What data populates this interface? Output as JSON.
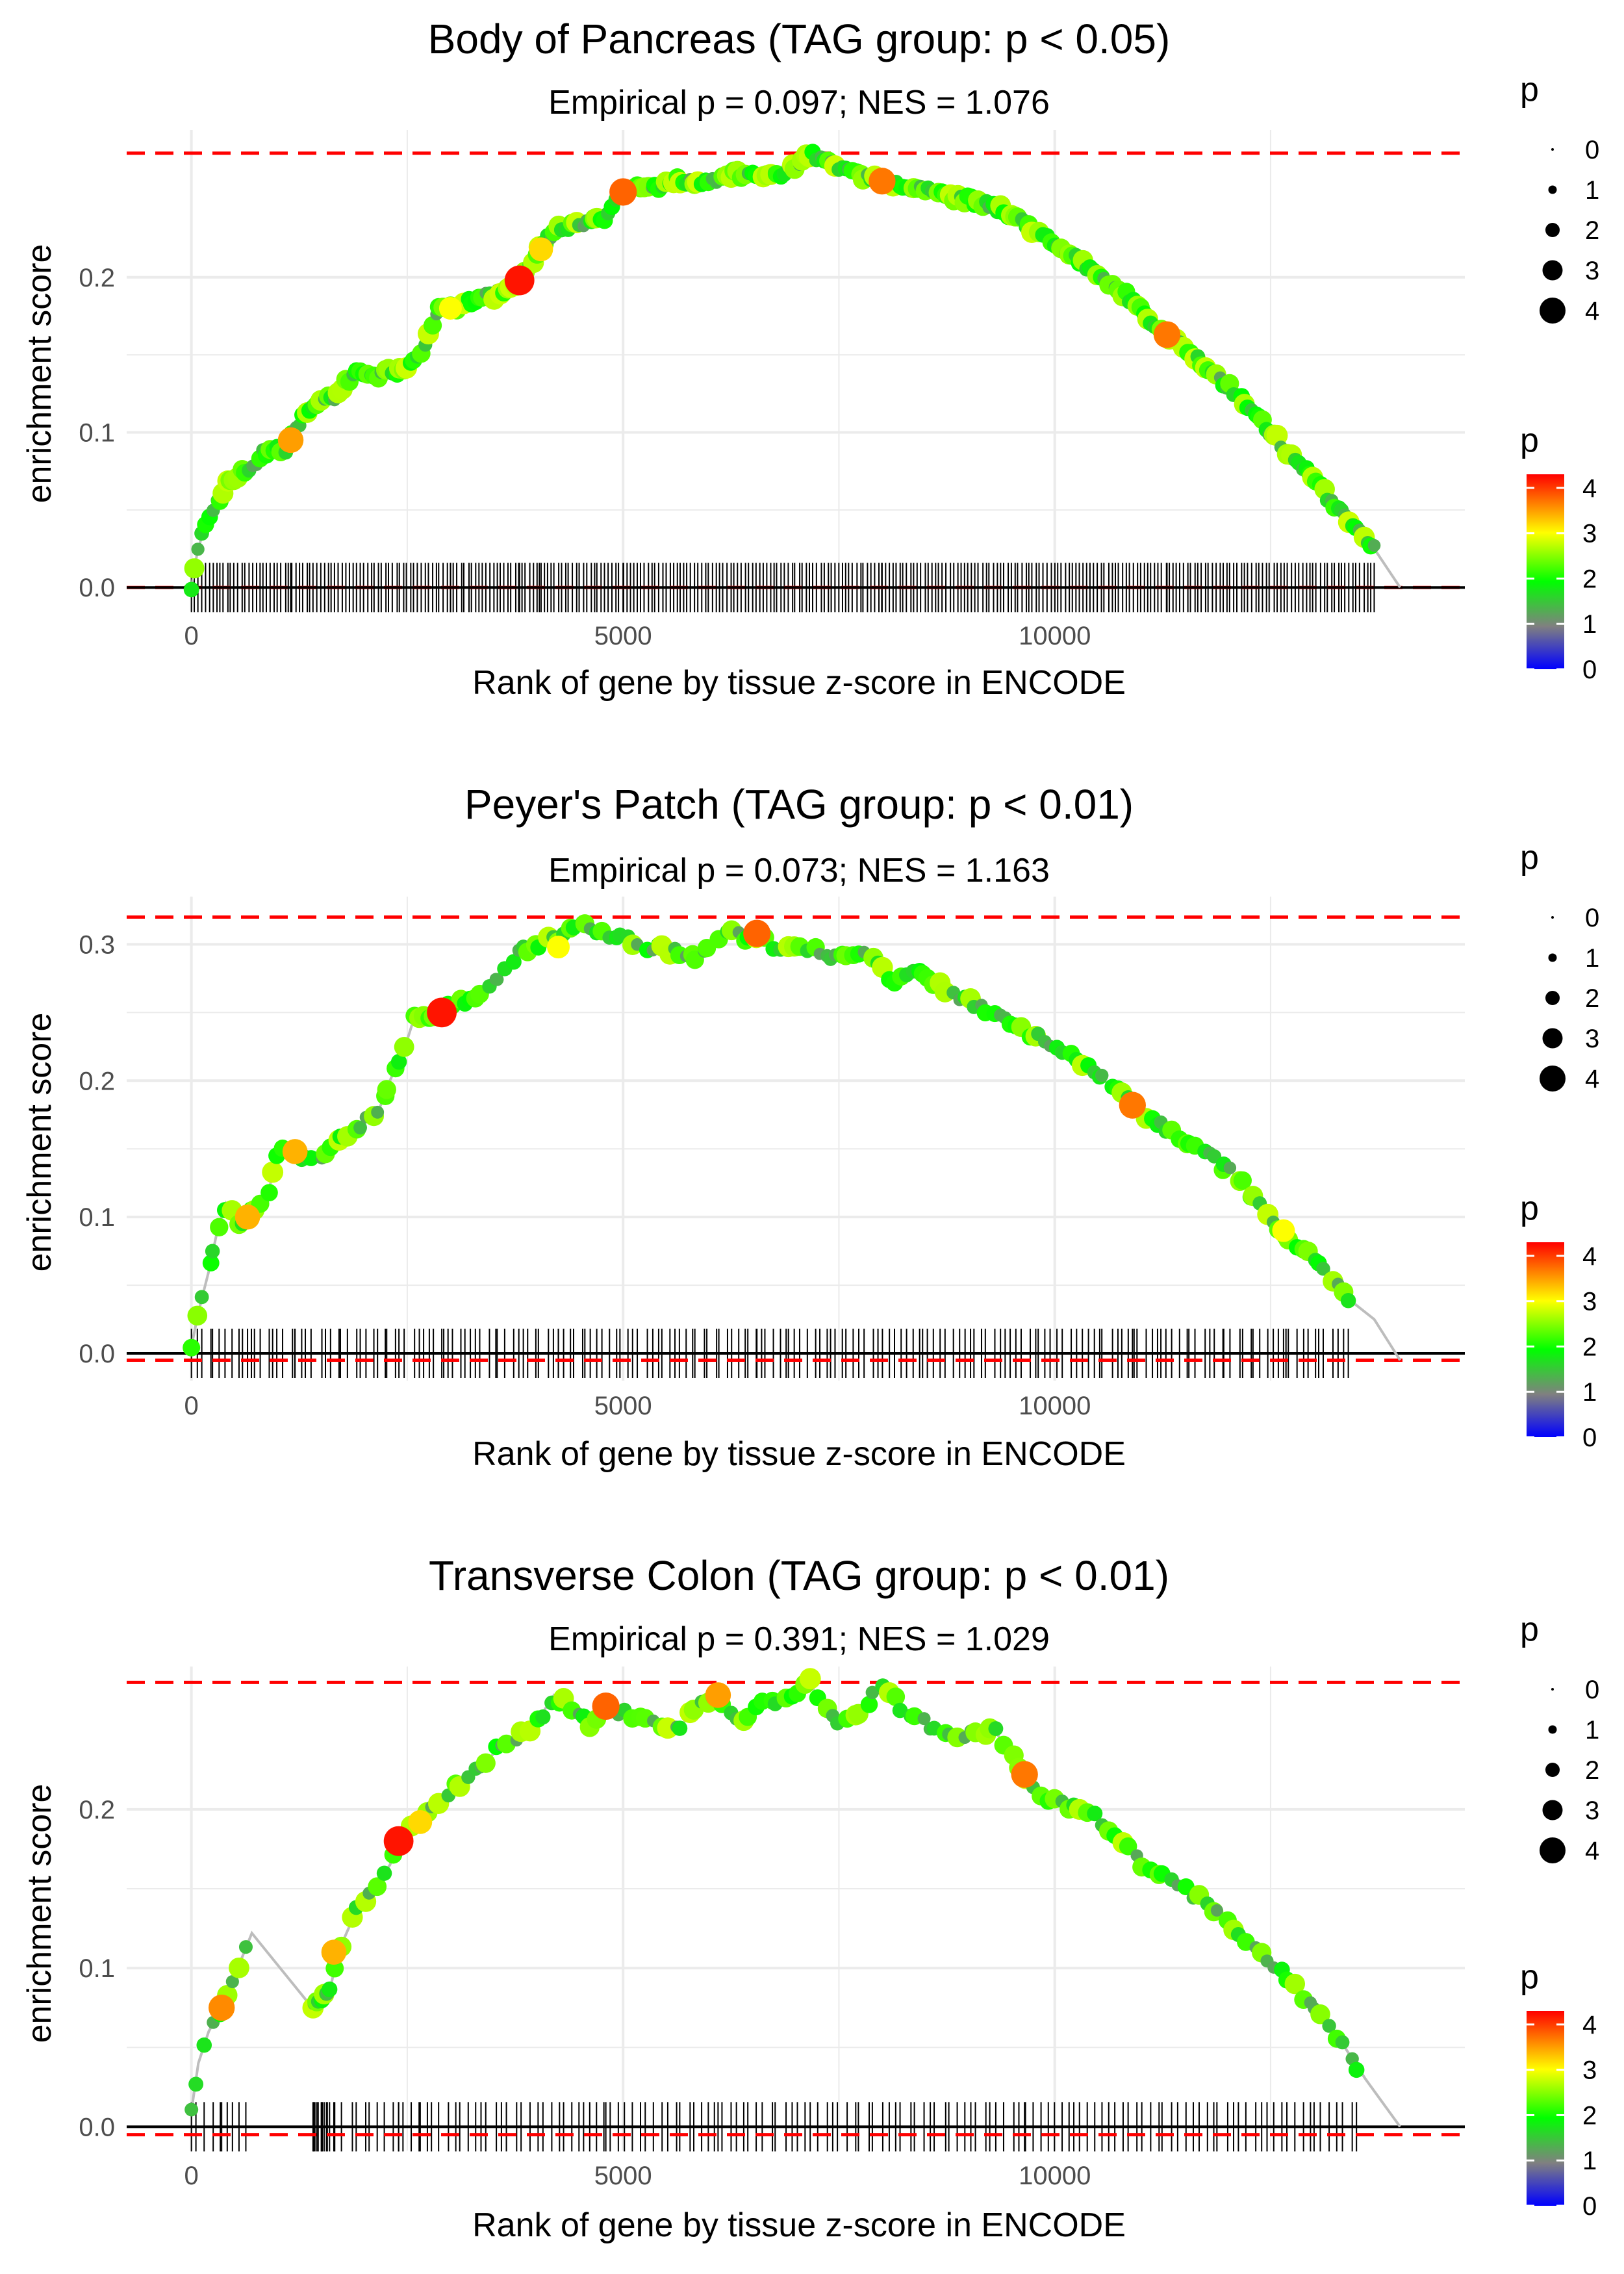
{
  "figure": {
    "x_axis_title": "Rank of gene by tissue z-score in ENCODE",
    "y_axis_title": "enrichment score",
    "legend_size_title": "p",
    "legend_color_title": "p"
  },
  "chart_data": [
    {
      "type": "scatter",
      "title": "Body of Pancreas (TAG group: p < 0.05)",
      "subtitle": "Empirical p = 0.097; NES = 1.076",
      "xlabel": "Rank of gene by tissue z-score in ENCODE",
      "ylabel": "enrichment score",
      "xlim": [
        -750,
        14750
      ],
      "ylim": [
        -0.015,
        0.295
      ],
      "x_ticks": [
        0,
        5000,
        10000
      ],
      "x_tick_labels": [
        "0",
        "5000",
        "10000"
      ],
      "y_ticks": [
        0.0,
        0.1,
        0.2
      ],
      "y_tick_labels": [
        "0.0",
        "0.1",
        "0.2"
      ],
      "max_es": 0.28,
      "min_es": 0.0,
      "curve": [
        [
          0,
          0.0
        ],
        [
          60,
          0.02
        ],
        [
          150,
          0.04
        ],
        [
          300,
          0.055
        ],
        [
          450,
          0.07
        ],
        [
          650,
          0.075
        ],
        [
          900,
          0.09
        ],
        [
          1100,
          0.09
        ],
        [
          1300,
          0.11
        ],
        [
          1500,
          0.12
        ],
        [
          1700,
          0.125
        ],
        [
          1900,
          0.14
        ],
        [
          2100,
          0.135
        ],
        [
          2400,
          0.14
        ],
        [
          2700,
          0.155
        ],
        [
          2850,
          0.18
        ],
        [
          3050,
          0.18
        ],
        [
          3300,
          0.185
        ],
        [
          3600,
          0.19
        ],
        [
          3800,
          0.198
        ],
        [
          4000,
          0.215
        ],
        [
          4200,
          0.23
        ],
        [
          4500,
          0.235
        ],
        [
          4800,
          0.238
        ],
        [
          5000,
          0.255
        ],
        [
          5300,
          0.258
        ],
        [
          5600,
          0.262
        ],
        [
          5900,
          0.262
        ],
        [
          6300,
          0.266
        ],
        [
          6700,
          0.266
        ],
        [
          7000,
          0.27
        ],
        [
          7150,
          0.28
        ],
        [
          7400,
          0.272
        ],
        [
          7700,
          0.265
        ],
        [
          8000,
          0.262
        ],
        [
          8400,
          0.256
        ],
        [
          8800,
          0.252
        ],
        [
          9200,
          0.248
        ],
        [
          9500,
          0.24
        ],
        [
          9900,
          0.225
        ],
        [
          10300,
          0.21
        ],
        [
          10800,
          0.19
        ],
        [
          11300,
          0.163
        ],
        [
          11700,
          0.145
        ],
        [
          12100,
          0.125
        ],
        [
          12500,
          0.1
        ],
        [
          12900,
          0.075
        ],
        [
          13300,
          0.05
        ],
        [
          13700,
          0.025
        ],
        [
          14000,
          0.0
        ]
      ],
      "highlights": [
        {
          "x": 3800,
          "y": 0.198,
          "p": 4.2
        },
        {
          "x": 5000,
          "y": 0.255,
          "p": 3.8
        },
        {
          "x": 8000,
          "y": 0.262,
          "p": 3.7
        },
        {
          "x": 11300,
          "y": 0.163,
          "p": 3.7
        },
        {
          "x": 1150,
          "y": 0.095,
          "p": 3.5
        },
        {
          "x": 4050,
          "y": 0.218,
          "p": 3.2
        },
        {
          "x": 3000,
          "y": 0.18,
          "p": 3.0
        }
      ],
      "density": "dense",
      "n_points": 330,
      "seed": 11,
      "tail_start": 13700
    },
    {
      "type": "scatter",
      "title": "Peyer's Patch (TAG group: p < 0.01)",
      "subtitle": "Empirical p = 0.073; NES = 1.163",
      "xlabel": "Rank of gene by tissue z-score in ENCODE",
      "ylabel": "enrichment score",
      "xlim": [
        -750,
        14750
      ],
      "ylim": [
        -0.02,
        0.335
      ],
      "x_ticks": [
        0,
        5000,
        10000
      ],
      "x_tick_labels": [
        "0",
        "5000",
        "10000"
      ],
      "y_ticks": [
        0.0,
        0.1,
        0.2,
        0.3
      ],
      "y_tick_labels": [
        "0.0",
        "0.1",
        "0.2",
        "0.3"
      ],
      "max_es": 0.32,
      "min_es": -0.005,
      "curve": [
        [
          0,
          0.005
        ],
        [
          80,
          0.03
        ],
        [
          200,
          0.06
        ],
        [
          300,
          0.09
        ],
        [
          400,
          0.11
        ],
        [
          550,
          0.095
        ],
        [
          700,
          0.105
        ],
        [
          900,
          0.12
        ],
        [
          1000,
          0.15
        ],
        [
          1200,
          0.148
        ],
        [
          1400,
          0.14
        ],
        [
          1600,
          0.15
        ],
        [
          1800,
          0.16
        ],
        [
          2000,
          0.17
        ],
        [
          2150,
          0.175
        ],
        [
          2300,
          0.2
        ],
        [
          2500,
          0.23
        ],
        [
          2600,
          0.25
        ],
        [
          2800,
          0.245
        ],
        [
          3000,
          0.255
        ],
        [
          3200,
          0.26
        ],
        [
          3500,
          0.27
        ],
        [
          3800,
          0.295
        ],
        [
          4000,
          0.3
        ],
        [
          4300,
          0.305
        ],
        [
          4500,
          0.32
        ],
        [
          4700,
          0.31
        ],
        [
          5000,
          0.305
        ],
        [
          5300,
          0.298
        ],
        [
          5600,
          0.295
        ],
        [
          5900,
          0.29
        ],
        [
          6200,
          0.312
        ],
        [
          6400,
          0.305
        ],
        [
          6550,
          0.308
        ],
        [
          6800,
          0.295
        ],
        [
          7100,
          0.298
        ],
        [
          7400,
          0.292
        ],
        [
          7900,
          0.292
        ],
        [
          8100,
          0.272
        ],
        [
          8400,
          0.28
        ],
        [
          8800,
          0.265
        ],
        [
          9200,
          0.252
        ],
        [
          9700,
          0.235
        ],
        [
          10300,
          0.215
        ],
        [
          10900,
          0.182
        ],
        [
          11300,
          0.165
        ],
        [
          11700,
          0.15
        ],
        [
          12100,
          0.13
        ],
        [
          12600,
          0.09
        ],
        [
          13000,
          0.07
        ],
        [
          13400,
          0.04
        ],
        [
          13700,
          0.025
        ],
        [
          14000,
          -0.005
        ]
      ],
      "highlights": [
        {
          "x": 2900,
          "y": 0.25,
          "p": 4.2
        },
        {
          "x": 6550,
          "y": 0.308,
          "p": 3.8
        },
        {
          "x": 10900,
          "y": 0.182,
          "p": 3.7
        },
        {
          "x": 650,
          "y": 0.1,
          "p": 3.4
        },
        {
          "x": 1200,
          "y": 0.148,
          "p": 3.4
        },
        {
          "x": 4250,
          "y": 0.298,
          "p": 3.0
        },
        {
          "x": 12650,
          "y": 0.09,
          "p": 3.0
        }
      ],
      "density": "medium",
      "n_points": 200,
      "seed": 23,
      "tail_start": 13400
    },
    {
      "type": "scatter",
      "title": "Transverse Colon (TAG group: p < 0.01)",
      "subtitle": "Empirical p = 0.391; NES = 1.029",
      "xlabel": "Rank of gene by tissue z-score in ENCODE",
      "ylabel": "enrichment score",
      "xlim": [
        -750,
        14750
      ],
      "ylim": [
        -0.015,
        0.29
      ],
      "x_ticks": [
        0,
        5000,
        10000
      ],
      "x_tick_labels": [
        "0",
        "5000",
        "10000"
      ],
      "y_ticks": [
        0.0,
        0.1,
        0.2
      ],
      "y_tick_labels": [
        "0.0",
        "0.1",
        "0.2"
      ],
      "max_es": 0.28,
      "min_es": -0.005,
      "curve": [
        [
          0,
          0.01
        ],
        [
          80,
          0.04
        ],
        [
          200,
          0.06
        ],
        [
          350,
          0.075
        ],
        [
          500,
          0.095
        ],
        [
          700,
          0.122
        ],
        [
          1400,
          0.075
        ],
        [
          1600,
          0.085
        ],
        [
          1700,
          0.11
        ],
        [
          1900,
          0.135
        ],
        [
          2100,
          0.15
        ],
        [
          2300,
          0.165
        ],
        [
          2400,
          0.18
        ],
        [
          2700,
          0.195
        ],
        [
          3000,
          0.21
        ],
        [
          3300,
          0.225
        ],
        [
          3600,
          0.24
        ],
        [
          4000,
          0.255
        ],
        [
          4200,
          0.272
        ],
        [
          4400,
          0.265
        ],
        [
          4650,
          0.25
        ],
        [
          4800,
          0.265
        ],
        [
          5100,
          0.258
        ],
        [
          5400,
          0.255
        ],
        [
          5600,
          0.248
        ],
        [
          5900,
          0.268
        ],
        [
          6100,
          0.272
        ],
        [
          6300,
          0.255
        ],
        [
          6600,
          0.265
        ],
        [
          6900,
          0.272
        ],
        [
          7000,
          0.275
        ],
        [
          7150,
          0.282
        ],
        [
          7300,
          0.265
        ],
        [
          7500,
          0.252
        ],
        [
          7800,
          0.265
        ],
        [
          8000,
          0.28
        ],
        [
          8200,
          0.265
        ],
        [
          8600,
          0.25
        ],
        [
          8900,
          0.245
        ],
        [
          9300,
          0.25
        ],
        [
          9650,
          0.222
        ],
        [
          9900,
          0.205
        ],
        [
          10300,
          0.2
        ],
        [
          10600,
          0.19
        ],
        [
          11000,
          0.165
        ],
        [
          11300,
          0.155
        ],
        [
          11800,
          0.14
        ],
        [
          12100,
          0.125
        ],
        [
          12500,
          0.105
        ],
        [
          12900,
          0.08
        ],
        [
          13300,
          0.055
        ],
        [
          13600,
          0.03
        ],
        [
          14000,
          0.0
        ]
      ],
      "highlights": [
        {
          "x": 2400,
          "y": 0.18,
          "p": 4.2
        },
        {
          "x": 4800,
          "y": 0.265,
          "p": 3.8
        },
        {
          "x": 9650,
          "y": 0.222,
          "p": 3.7
        },
        {
          "x": 350,
          "y": 0.075,
          "p": 3.6
        },
        {
          "x": 6100,
          "y": 0.272,
          "p": 3.5
        },
        {
          "x": 1650,
          "y": 0.11,
          "p": 3.4
        },
        {
          "x": 2650,
          "y": 0.192,
          "p": 3.2
        }
      ],
      "density": "medium",
      "n_points": 170,
      "seed": 37,
      "tail_start": 13500
    }
  ],
  "legend": {
    "size_levels": [
      "0",
      "1",
      "2",
      "3",
      "4"
    ],
    "size_values": [
      0,
      1,
      2,
      3,
      4
    ],
    "color_ticks": [
      "0",
      "1",
      "2",
      "3",
      "4"
    ],
    "color_values": [
      0,
      1,
      2,
      3,
      4
    ],
    "color_stops": [
      "#0000ff",
      "#808080",
      "#00ff00",
      "#ffff00",
      "#ff0000"
    ],
    "color_range": [
      0,
      4.3
    ]
  },
  "colors": {
    "curve_line": "#bdbdbd",
    "ref_line": "#ff0000",
    "grid": "#ebebeb",
    "rug": "#000000",
    "axis": "#000000"
  }
}
